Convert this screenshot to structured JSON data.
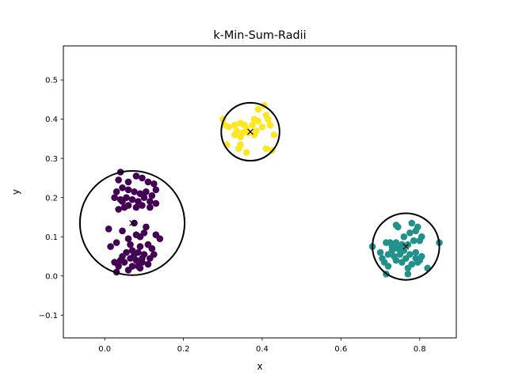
{
  "chart_data": {
    "type": "scatter",
    "title": "k-Min-Sum-Radii",
    "xlabel": "x",
    "ylabel": "y",
    "xlim": [
      -0.105,
      0.893
    ],
    "ylim": [
      -0.158,
      0.587
    ],
    "xticks": [
      0.0,
      0.2,
      0.4,
      0.6,
      0.8
    ],
    "xtick_labels": [
      "0.0",
      "0.2",
      "0.4",
      "0.6",
      "0.8"
    ],
    "yticks": [
      -0.1,
      0.0,
      0.1,
      0.2,
      0.3,
      0.4,
      0.5
    ],
    "ytick_labels": [
      "−0.1",
      "0.0",
      "0.1",
      "0.2",
      "0.3",
      "0.4",
      "0.5"
    ],
    "grid": false,
    "legend": "none",
    "series": [
      {
        "color": "#440154",
        "center": [
          0.07,
          0.135
        ],
        "radius": 0.133,
        "points": [
          [
            0.04,
            0.265
          ],
          [
            0.035,
            0.245
          ],
          [
            0.06,
            0.24
          ],
          [
            0.08,
            0.255
          ],
          [
            0.095,
            0.25
          ],
          [
            0.11,
            0.24
          ],
          [
            0.125,
            0.235
          ],
          [
            0.13,
            0.22
          ],
          [
            0.12,
            0.205
          ],
          [
            0.105,
            0.215
          ],
          [
            0.09,
            0.21
          ],
          [
            0.075,
            0.215
          ],
          [
            0.06,
            0.22
          ],
          [
            0.045,
            0.225
          ],
          [
            0.03,
            0.215
          ],
          [
            0.025,
            0.2
          ],
          [
            0.04,
            0.195
          ],
          [
            0.055,
            0.2
          ],
          [
            0.07,
            0.195
          ],
          [
            0.085,
            0.19
          ],
          [
            0.1,
            0.2
          ],
          [
            0.115,
            0.19
          ],
          [
            0.13,
            0.185
          ],
          [
            0.115,
            0.175
          ],
          [
            0.095,
            0.18
          ],
          [
            0.08,
            0.175
          ],
          [
            0.06,
            0.18
          ],
          [
            0.05,
            0.175
          ],
          [
            0.045,
            0.19
          ],
          [
            0.035,
            0.17
          ],
          [
            0.01,
            0.12
          ],
          [
            0.015,
            0.075
          ],
          [
            0.03,
            0.085
          ],
          [
            0.06,
            0.095
          ],
          [
            0.09,
            0.1
          ],
          [
            0.105,
            0.125
          ],
          [
            0.1,
            0.11
          ],
          [
            0.08,
            0.105
          ],
          [
            0.13,
            0.105
          ],
          [
            0.14,
            0.095
          ],
          [
            0.075,
            0.135
          ],
          [
            0.045,
            0.115
          ],
          [
            0.065,
            0.08
          ],
          [
            0.09,
            0.075
          ],
          [
            0.11,
            0.08
          ],
          [
            0.12,
            0.07
          ],
          [
            0.125,
            0.055
          ],
          [
            0.115,
            0.045
          ],
          [
            0.1,
            0.055
          ],
          [
            0.085,
            0.06
          ],
          [
            0.07,
            0.065
          ],
          [
            0.055,
            0.06
          ],
          [
            0.045,
            0.05
          ],
          [
            0.04,
            0.04
          ],
          [
            0.05,
            0.035
          ],
          [
            0.065,
            0.045
          ],
          [
            0.08,
            0.04
          ],
          [
            0.095,
            0.035
          ],
          [
            0.11,
            0.03
          ],
          [
            0.09,
            0.02
          ],
          [
            0.07,
            0.025
          ],
          [
            0.06,
            0.015
          ],
          [
            0.035,
            0.025
          ],
          [
            0.025,
            0.035
          ],
          [
            0.03,
            0.01
          ],
          [
            0.095,
            0.045
          ],
          [
            0.085,
            0.025
          ],
          [
            0.075,
            0.055
          ]
        ]
      },
      {
        "color": "#21918c",
        "center": [
          0.765,
          0.075
        ],
        "radius": 0.085,
        "points": [
          [
            0.68,
            0.075
          ],
          [
            0.7,
            0.06
          ],
          [
            0.705,
            0.045
          ],
          [
            0.71,
            0.035
          ],
          [
            0.72,
            0.025
          ],
          [
            0.715,
            0.005
          ],
          [
            0.73,
            0.065
          ],
          [
            0.74,
            0.085
          ],
          [
            0.745,
            0.07
          ],
          [
            0.75,
            0.055
          ],
          [
            0.735,
            0.05
          ],
          [
            0.72,
            0.055
          ],
          [
            0.725,
            0.085
          ],
          [
            0.715,
            0.085
          ],
          [
            0.74,
            0.13
          ],
          [
            0.745,
            0.125
          ],
          [
            0.76,
            0.1
          ],
          [
            0.775,
            0.11
          ],
          [
            0.79,
            0.115
          ],
          [
            0.795,
            0.125
          ],
          [
            0.78,
            0.135
          ],
          [
            0.785,
            0.09
          ],
          [
            0.77,
            0.08
          ],
          [
            0.76,
            0.065
          ],
          [
            0.775,
            0.055
          ],
          [
            0.79,
            0.045
          ],
          [
            0.8,
            0.04
          ],
          [
            0.805,
            0.05
          ],
          [
            0.795,
            0.035
          ],
          [
            0.78,
            0.03
          ],
          [
            0.77,
            0.02
          ],
          [
            0.77,
            0.005
          ],
          [
            0.82,
            0.02
          ],
          [
            0.85,
            0.085
          ],
          [
            0.755,
            0.035
          ],
          [
            0.8,
            0.09
          ],
          [
            0.805,
            0.1
          ],
          [
            0.765,
            0.045
          ],
          [
            0.74,
            0.04
          ],
          [
            0.73,
            0.075
          ],
          [
            0.755,
            0.08
          ],
          [
            0.79,
            0.06
          ]
        ]
      },
      {
        "color": "#fde725",
        "center": [
          0.37,
          0.368
        ],
        "radius": 0.074,
        "points": [
          [
            0.405,
            0.435
          ],
          [
            0.39,
            0.425
          ],
          [
            0.41,
            0.41
          ],
          [
            0.39,
            0.395
          ],
          [
            0.375,
            0.385
          ],
          [
            0.38,
            0.4
          ],
          [
            0.4,
            0.38
          ],
          [
            0.42,
            0.385
          ],
          [
            0.415,
            0.4
          ],
          [
            0.43,
            0.36
          ],
          [
            0.385,
            0.37
          ],
          [
            0.36,
            0.375
          ],
          [
            0.345,
            0.39
          ],
          [
            0.33,
            0.385
          ],
          [
            0.335,
            0.37
          ],
          [
            0.35,
            0.365
          ],
          [
            0.345,
            0.355
          ],
          [
            0.33,
            0.36
          ],
          [
            0.315,
            0.38
          ],
          [
            0.305,
            0.385
          ],
          [
            0.3,
            0.4
          ],
          [
            0.31,
            0.335
          ],
          [
            0.34,
            0.325
          ],
          [
            0.345,
            0.335
          ],
          [
            0.36,
            0.315
          ],
          [
            0.41,
            0.325
          ],
          [
            0.425,
            0.32
          ],
          [
            0.365,
            0.365
          ],
          [
            0.38,
            0.36
          ],
          [
            0.355,
            0.385
          ]
        ]
      }
    ]
  }
}
